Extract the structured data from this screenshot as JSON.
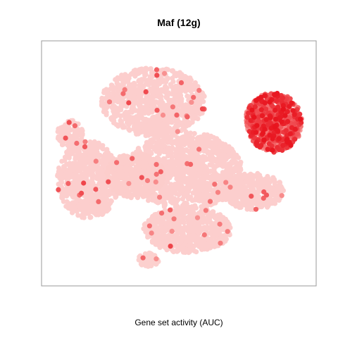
{
  "chart_data": {
    "type": "scatter",
    "title": "Maf (12g)",
    "xlabel": "Gene set activity (AUC)",
    "ylabel": "",
    "grid": false,
    "legend": "none",
    "axes_visible": false,
    "xlim": [
      0,
      100
    ],
    "ylim": [
      0,
      100
    ],
    "color_scale": {
      "low": "#fcd6d4",
      "mid": "#f88a8a",
      "high": "#e8141e"
    },
    "clusters": [
      {
        "name": "top-middle",
        "cx": 40,
        "cy": 77,
        "rx": 20,
        "ry": 15,
        "n": 900,
        "activity": 0.05
      },
      {
        "name": "center",
        "cx": 52,
        "cy": 47,
        "rx": 22,
        "ry": 17,
        "n": 1100,
        "activity": 0.05
      },
      {
        "name": "left",
        "cx": 15,
        "cy": 43,
        "rx": 12,
        "ry": 17,
        "n": 700,
        "activity": 0.05
      },
      {
        "name": "middle-left",
        "cx": 33,
        "cy": 45,
        "rx": 11,
        "ry": 10,
        "n": 450,
        "activity": 0.06
      },
      {
        "name": "bottom",
        "cx": 53,
        "cy": 21,
        "rx": 17,
        "ry": 10,
        "n": 650,
        "activity": 0.05
      },
      {
        "name": "right",
        "cx": 78,
        "cy": 38,
        "rx": 12,
        "ry": 8,
        "n": 350,
        "activity": 0.05
      },
      {
        "name": "far-left",
        "cx": 8,
        "cy": 63,
        "rx": 5,
        "ry": 6,
        "n": 120,
        "activity": 0.05
      },
      {
        "name": "small-bottom",
        "cx": 38,
        "cy": 8,
        "rx": 4,
        "ry": 3,
        "n": 60,
        "activity": 0.04
      },
      {
        "name": "top-right-active",
        "cx": 86,
        "cy": 68,
        "rx": 11,
        "ry": 13,
        "n": 700,
        "activity": 0.7
      }
    ]
  }
}
